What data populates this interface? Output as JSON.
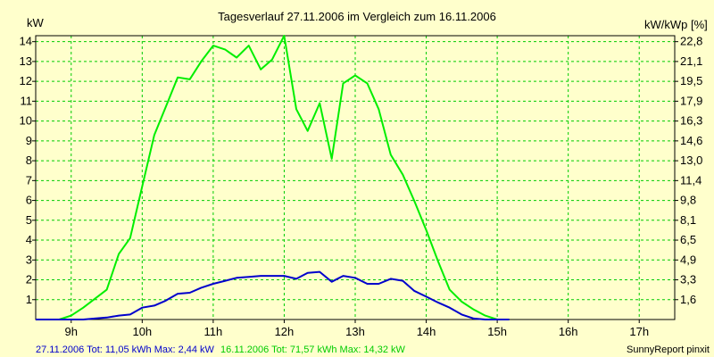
{
  "chart_data": {
    "type": "line",
    "title": "Tagesverlauf 27.11.2006 im Vergleich zum 16.11.2006",
    "ylabel_left": "kW",
    "ylabel_right": "kW/kWp [%]",
    "xlim": [
      8.5,
      17.5
    ],
    "ylim": [
      0,
      14.3
    ],
    "x_ticks": [
      9,
      10,
      11,
      12,
      13,
      14,
      15,
      16,
      17
    ],
    "x_tick_labels": [
      "9h",
      "10h",
      "11h",
      "12h",
      "13h",
      "14h",
      "15h",
      "16h",
      "17h"
    ],
    "y_left_ticks": [
      1,
      2,
      3,
      4,
      5,
      6,
      7,
      8,
      9,
      10,
      11,
      12,
      13,
      14
    ],
    "y_right_ticks": [
      1.0,
      2.0,
      3.0,
      4.0,
      5.0,
      6.0,
      7.0,
      8.0,
      9.0,
      10.0,
      11.0,
      12.0,
      13.0,
      14.0
    ],
    "y_right_tick_labels": [
      "1,6",
      "3,3",
      "4,9",
      "6,5",
      "8,1",
      "9,8",
      "11,4",
      "13,0",
      "14,6",
      "16,3",
      "17,9",
      "19,5",
      "21,1",
      "22,8"
    ],
    "grid": true,
    "series": [
      {
        "name": "16.11.2006",
        "color": "#00ee00",
        "x": [
          8.5,
          8.83,
          9.0,
          9.17,
          9.5,
          9.67,
          9.83,
          10.0,
          10.17,
          10.33,
          10.5,
          10.67,
          10.83,
          11.0,
          11.17,
          11.33,
          11.5,
          11.67,
          11.83,
          12.0,
          12.17,
          12.33,
          12.5,
          12.67,
          12.83,
          13.0,
          13.17,
          13.33,
          13.5,
          13.67,
          13.83,
          14.0,
          14.17,
          14.33,
          14.5,
          14.67,
          14.83,
          15.0,
          15.17,
          15.33,
          15.5,
          15.67,
          15.83,
          16.0,
          16.17,
          16.33,
          16.5,
          16.67,
          16.83,
          17.0,
          17.17,
          17.33,
          17.5
        ],
        "values": [
          0.0,
          0.0,
          0.2,
          0.6,
          1.5,
          3.3,
          4.1,
          6.7,
          9.3,
          10.7,
          12.2,
          12.1,
          13.0,
          13.8,
          13.6,
          13.2,
          13.8,
          12.6,
          13.1,
          14.3,
          10.6,
          9.5,
          10.9,
          8.1,
          11.9,
          12.3,
          11.9,
          10.6,
          8.3,
          7.3,
          6.0,
          4.5,
          2.9,
          1.5,
          0.9,
          0.5,
          0.2,
          0.0,
          0.0,
          null,
          null,
          null,
          null,
          null,
          null,
          null,
          null,
          null,
          null,
          null,
          null,
          null,
          null
        ]
      },
      {
        "name": "27.11.2006",
        "color": "#0000cc",
        "x": [
          8.5,
          9.0,
          9.17,
          9.33,
          9.5,
          9.67,
          9.83,
          10.0,
          10.17,
          10.33,
          10.5,
          10.67,
          10.83,
          11.0,
          11.17,
          11.33,
          11.5,
          11.67,
          11.83,
          12.0,
          12.17,
          12.33,
          12.5,
          12.67,
          12.83,
          13.0,
          13.17,
          13.33,
          13.5,
          13.67,
          13.83,
          14.0,
          14.17,
          14.33,
          14.5,
          14.67,
          14.83,
          15.0,
          15.17,
          15.33,
          15.5,
          15.67,
          15.83,
          16.0,
          16.17,
          16.33,
          16.5,
          16.67,
          16.83,
          17.0,
          17.17,
          17.33,
          17.5
        ],
        "values": [
          0.0,
          0.0,
          0.0,
          0.05,
          0.1,
          0.2,
          0.25,
          0.6,
          0.7,
          0.95,
          1.3,
          1.35,
          1.6,
          1.8,
          1.95,
          2.1,
          2.15,
          2.2,
          2.2,
          2.2,
          2.05,
          2.35,
          2.4,
          1.9,
          2.2,
          2.1,
          1.8,
          1.8,
          2.05,
          1.95,
          1.45,
          1.15,
          0.85,
          0.6,
          0.25,
          0.05,
          0.0,
          0.0,
          0.0,
          null,
          null,
          null,
          null,
          null,
          null,
          null,
          null,
          null,
          null,
          null,
          null,
          null,
          null
        ]
      }
    ]
  },
  "footer": {
    "series2_summary": "27.11.2006 Tot: 11,05 kWh Max: 2,44 kW",
    "series1_summary": "16.11.2006 Tot: 71,57 kWh Max: 14,32 kW",
    "credit": "SunnyReport pinxit"
  }
}
